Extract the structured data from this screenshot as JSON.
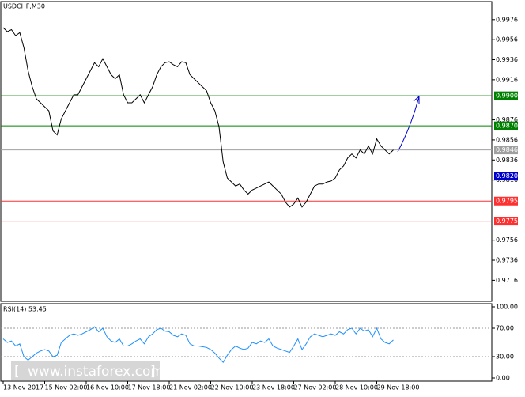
{
  "chart_data": {
    "type": "line",
    "title": "USDCHF,M30",
    "categories": [
      "13 Nov 2017",
      null,
      null,
      null,
      null,
      null,
      null,
      null,
      null,
      null,
      "15 Nov 02:00",
      null,
      null,
      null,
      null,
      null,
      null,
      null,
      null,
      null,
      "16 Nov 10:00",
      null,
      null,
      null,
      null,
      null,
      null,
      null,
      null,
      null,
      "17 Nov 18:00",
      null,
      null,
      null,
      null,
      null,
      null,
      null,
      null,
      null,
      "21 Nov 02:00",
      null,
      null,
      null,
      null,
      null,
      null,
      null,
      null,
      null,
      "22 Nov 10:00",
      null,
      null,
      null,
      null,
      null,
      null,
      null,
      null,
      null,
      "23 Nov 18:00",
      null,
      null,
      null,
      null,
      null,
      null,
      null,
      null,
      null,
      "27 Nov 02:00",
      null,
      null,
      null,
      null,
      null,
      null,
      null,
      null,
      null,
      "28 Nov 10:00",
      null,
      null,
      null,
      null,
      null,
      null,
      null,
      null,
      null,
      "29 Nov 18:00",
      null,
      null,
      null,
      null
    ],
    "series": [
      {
        "color": "#000000",
        "values": [
          0.9968,
          0.9964,
          0.9966,
          0.996,
          0.9963,
          0.9948,
          0.9925,
          0.9909,
          0.9897,
          0.9893,
          0.9889,
          0.9885,
          0.9865,
          0.9861,
          0.9877,
          0.9885,
          0.9893,
          0.9901,
          0.9901,
          0.9909,
          0.9917,
          0.9925,
          0.9933,
          0.9929,
          0.9937,
          0.9929,
          0.9921,
          0.9917,
          0.9921,
          0.9901,
          0.9893,
          0.9893,
          0.9897,
          0.9901,
          0.9893,
          0.9901,
          0.9909,
          0.9921,
          0.9929,
          0.9933,
          0.9934,
          0.9931,
          0.9929,
          0.9934,
          0.9933,
          0.9921,
          0.9917,
          0.9913,
          0.9909,
          0.9905,
          0.9893,
          0.9885,
          0.9869,
          0.9834,
          0.9818,
          0.9814,
          0.981,
          0.9812,
          0.9806,
          0.9802,
          0.9806,
          0.9808,
          0.981,
          0.9812,
          0.9814,
          0.981,
          0.9806,
          0.9802,
          0.9794,
          0.9789,
          0.9792,
          0.9798,
          0.9789,
          0.9794,
          0.9802,
          0.981,
          0.9812,
          0.9812,
          0.9814,
          0.9815,
          0.9818,
          0.9826,
          0.983,
          0.9838,
          0.9842,
          0.9838,
          0.9846,
          0.9842,
          0.985,
          0.9842,
          0.9857,
          0.985,
          0.9846,
          0.9842,
          0.9846
        ]
      }
    ],
    "ylim": [
      0.9695,
      0.9994
    ],
    "yticks": [
      0.9976,
      0.9956,
      0.9936,
      0.9916,
      0.9876,
      0.9856,
      0.9836,
      0.9816,
      0.9756,
      0.9736,
      0.9716
    ],
    "levels": [
      {
        "value": 0.99,
        "label": "0.9900",
        "color": "#008000"
      },
      {
        "value": 0.987,
        "label": "0.9870",
        "color": "#008000"
      },
      {
        "value": 0.9846,
        "label": "0.9846",
        "color": "#a0a0a0"
      },
      {
        "value": 0.982,
        "label": "0.9820",
        "color": "#0000cc"
      },
      {
        "value": 0.9795,
        "label": "0.9795",
        "color": "#ff3030"
      },
      {
        "value": 0.9775,
        "label": "0.9775",
        "color": "#ff3030"
      }
    ],
    "rsi": {
      "title": "RSI(14) 53.45",
      "color": "#1e90ff",
      "values": [
        55,
        50,
        52,
        45,
        48,
        30,
        25,
        30,
        35,
        38,
        40,
        38,
        30,
        32,
        50,
        55,
        60,
        62,
        60,
        62,
        65,
        68,
        72,
        65,
        70,
        58,
        52,
        50,
        55,
        45,
        45,
        48,
        52,
        55,
        48,
        58,
        62,
        68,
        70,
        66,
        65,
        60,
        58,
        62,
        60,
        48,
        45,
        45,
        44,
        43,
        40,
        35,
        28,
        22,
        32,
        40,
        45,
        42,
        40,
        42,
        50,
        48,
        52,
        50,
        55,
        45,
        42,
        40,
        38,
        36,
        45,
        55,
        40,
        48,
        58,
        62,
        60,
        58,
        60,
        62,
        60,
        65,
        62,
        68,
        70,
        62,
        70,
        66,
        68,
        58,
        70,
        55,
        50,
        48,
        53.45
      ],
      "ylim": [
        0,
        100
      ],
      "yticks": [
        {
          "value": 100,
          "label": "100.00"
        },
        {
          "value": 70,
          "label": "70.00"
        },
        {
          "value": 30,
          "label": "30.00"
        },
        {
          "value": 0,
          "label": "0.00"
        }
      ]
    },
    "watermark": {
      "open": "[",
      "text": "www.instaforex.com",
      "close": "]"
    }
  }
}
